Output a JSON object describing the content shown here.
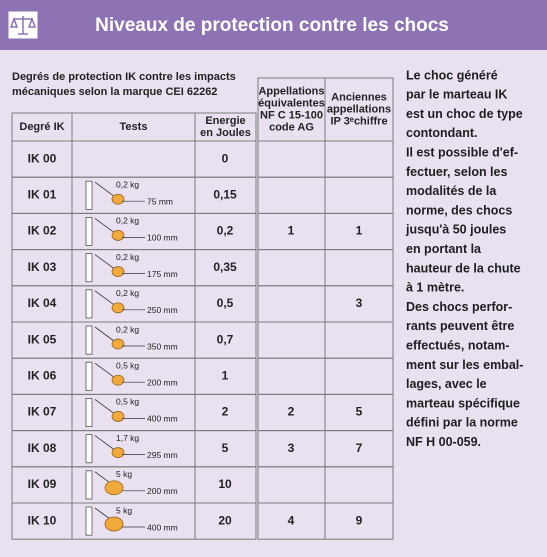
{
  "header": {
    "title": "Niveaux de protection contre les chocs"
  },
  "table": {
    "caption": [
      "Degrés de protection IK contre les impacts",
      "mécaniques selon la marque CEI 62262"
    ],
    "headers": [
      [
        "Degré IK"
      ],
      [
        "Tests"
      ],
      [
        "Energie",
        "en Joules"
      ],
      [
        "Appellations",
        "équivalentes",
        "NF C 15-100",
        "code AG"
      ],
      [
        "Anciennes",
        "appellations",
        "IP 3ᵉchiffre"
      ]
    ],
    "rows": [
      {
        "ik": "IK 00",
        "energy": "0"
      },
      {
        "ik": "IK 01",
        "weight": "0,2 kg",
        "height": "75 mm",
        "energy": "0,15"
      },
      {
        "ik": "IK 02",
        "weight": "0,2 kg",
        "height": "100 mm",
        "energy": "0,2",
        "ag": "1",
        "ip": "1"
      },
      {
        "ik": "IK 03",
        "weight": "0,2 kg",
        "height": "175 mm",
        "energy": "0,35"
      },
      {
        "ik": "IK 04",
        "weight": "0,2 kg",
        "height": "250 mm",
        "energy": "0,5",
        "ip": "3"
      },
      {
        "ik": "IK 05",
        "weight": "0,2 kg",
        "height": "350 mm",
        "energy": "0,7"
      },
      {
        "ik": "IK 06",
        "weight": "0,5 kg",
        "height": "200 mm",
        "energy": "1"
      },
      {
        "ik": "IK 07",
        "weight": "0,5 kg",
        "height": "400 mm",
        "energy": "2",
        "ag": "2",
        "ip": "5"
      },
      {
        "ik": "IK 08",
        "weight": "1,7 kg",
        "height": "295 mm",
        "energy": "5",
        "ag": "3",
        "ip": "7"
      },
      {
        "ik": "IK 09",
        "weight": "5 kg",
        "height": "200 mm",
        "energy": "10"
      },
      {
        "ik": "IK 10",
        "weight": "5 kg",
        "height": "400 mm",
        "energy": "20",
        "ag": "4",
        "ip": "9"
      }
    ]
  },
  "side_text": [
    "Le choc généré",
    "par le marteau IK",
    "est un choc de type",
    "contondant.",
    "Il est possible d'ef-",
    "fectuer, selon les",
    "modalités de la",
    "norme, des chocs",
    "jusqu'à 50 joules",
    "en portant la",
    "hauteur de la chute",
    "à 1 mètre.",
    "Des chocs perfor-",
    "rants peuvent être",
    "effectués, notam-",
    "ment sur les embal-",
    "lages, avec le",
    "marteau spécifique",
    "défini par la norme",
    "NF H 00-059."
  ]
}
